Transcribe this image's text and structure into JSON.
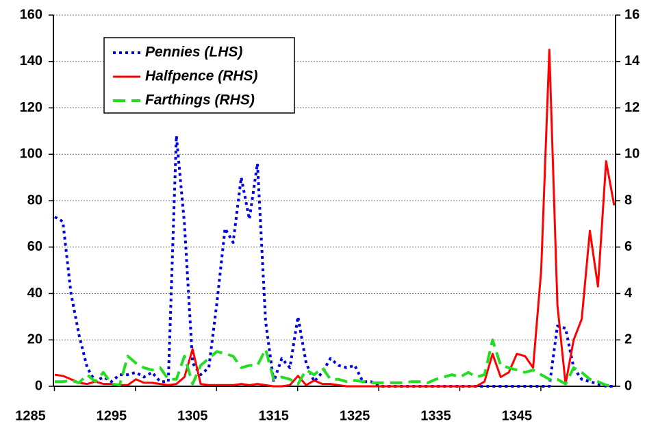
{
  "chart_data": {
    "type": "line",
    "x": [
      1288,
      1289,
      1290,
      1291,
      1292,
      1293,
      1294,
      1295,
      1296,
      1297,
      1298,
      1299,
      1300,
      1301,
      1302,
      1303,
      1304,
      1305,
      1306,
      1307,
      1308,
      1309,
      1310,
      1311,
      1312,
      1313,
      1314,
      1315,
      1316,
      1317,
      1318,
      1319,
      1320,
      1321,
      1322,
      1323,
      1324,
      1325,
      1326,
      1327,
      1328,
      1329,
      1330,
      1331,
      1332,
      1333,
      1334,
      1335,
      1336,
      1337,
      1338,
      1339,
      1340,
      1341,
      1342,
      1343,
      1344,
      1345,
      1346,
      1347,
      1348,
      1349,
      1350,
      1351,
      1352,
      1353,
      1354,
      1355,
      1356,
      1357
    ],
    "xlim": [
      1288,
      1357
    ],
    "xticks": [
      1285,
      1295,
      1305,
      1315,
      1325,
      1335,
      1345
    ],
    "ylim": [
      0,
      160
    ],
    "yticks": [
      0,
      20,
      40,
      60,
      80,
      100,
      120,
      140,
      160
    ],
    "y2lim": [
      0,
      16
    ],
    "y2ticks": [
      0,
      2,
      4,
      6,
      8,
      10,
      12,
      14,
      16
    ],
    "grid": true,
    "legend": "top-left",
    "series": [
      {
        "name": "Pennies (LHS)",
        "color": "#0000dd",
        "style": "dotted",
        "values": [
          73,
          71,
          40,
          22,
          8,
          2,
          4,
          2,
          5,
          5,
          6,
          4,
          6,
          2,
          2,
          108,
          70,
          10,
          5,
          8,
          36,
          68,
          62,
          90,
          72,
          96,
          28,
          2,
          12,
          8,
          30,
          10,
          2,
          6,
          12,
          9,
          8,
          9,
          2,
          2,
          0,
          0,
          0,
          0,
          0,
          0,
          0,
          0,
          0,
          0,
          0,
          0,
          0,
          0,
          0,
          0,
          0,
          0,
          0,
          0,
          0,
          0,
          26,
          25,
          8,
          3,
          2,
          1,
          0,
          0
        ]
      },
      {
        "name": "Halfpence (RHS)",
        "color": "#ff0000",
        "style": "solid",
        "axis": "y2",
        "values": [
          0.5,
          0.45,
          0.3,
          0.15,
          0.1,
          0.2,
          0.1,
          0.1,
          0.05,
          0.05,
          0.3,
          0.15,
          0.15,
          0.1,
          0.05,
          0.1,
          0.4,
          1.6,
          0.1,
          0.05,
          0.05,
          0.05,
          0.05,
          0.1,
          0.05,
          0.1,
          0.05,
          0,
          0,
          0.05,
          0.45,
          0.05,
          0.25,
          0.1,
          0.1,
          0.05,
          0,
          0,
          0,
          0,
          0,
          0,
          0,
          0,
          0,
          0,
          0,
          0,
          0,
          0,
          0,
          0,
          0,
          0.2,
          1.4,
          0.4,
          0.6,
          1.4,
          1.3,
          0.8,
          5,
          14.5,
          3.5,
          0.1,
          2,
          2.9,
          6.7,
          4.3,
          9.7,
          7.8
        ]
      },
      {
        "name": "Farthings (RHS)",
        "color": "#22dd22",
        "style": "dashed",
        "axis": "y2",
        "values": [
          0.2,
          0.2,
          0.25,
          0.15,
          0.5,
          0.2,
          0.6,
          0.1,
          0.05,
          1.3,
          1,
          0.8,
          0.7,
          0.8,
          0.3,
          0.3,
          1.3,
          0.1,
          0.9,
          1.2,
          1.5,
          1.4,
          1.3,
          0.8,
          0.9,
          0.9,
          1.6,
          0.3,
          0.4,
          0.3,
          0.1,
          0.7,
          0.5,
          0.8,
          0.3,
          0.3,
          0.2,
          0.25,
          0.2,
          0.15,
          0.15,
          0.15,
          0.15,
          0.15,
          0.2,
          0.2,
          0.15,
          0.3,
          0.4,
          0.5,
          0.4,
          0.6,
          0.4,
          0.5,
          2,
          0.9,
          0.8,
          0.7,
          0.6,
          0.7,
          0.5,
          0.3,
          0.3,
          0.1,
          0.8,
          0.6,
          0.3,
          0.2,
          0.05,
          0
        ]
      }
    ]
  }
}
